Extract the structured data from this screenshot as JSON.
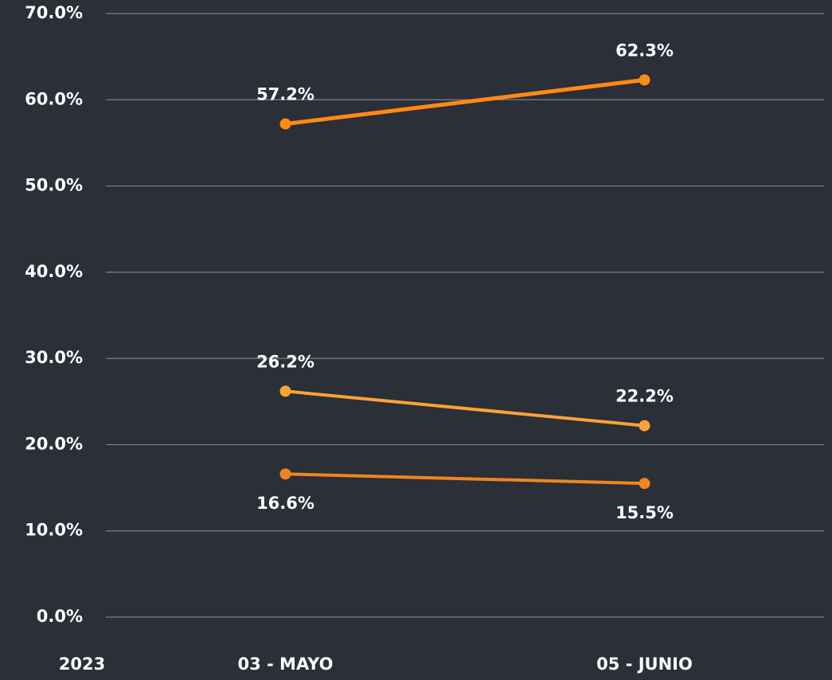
{
  "chart_data": {
    "type": "line",
    "x_label": "2023",
    "categories": [
      "03 - MAYO",
      "05 - JUNIO"
    ],
    "series": [
      {
        "color": "#ff8a14",
        "values": [
          57.2,
          62.3
        ],
        "value_labels": [
          "57.2%",
          "62.3%"
        ]
      },
      {
        "color": "#ffa236",
        "values": [
          26.2,
          22.2
        ],
        "value_labels": [
          "26.2%",
          "22.2%"
        ]
      },
      {
        "color": "#f08520",
        "values": [
          16.6,
          15.5
        ],
        "value_labels": [
          "16.6%",
          "15.5%"
        ]
      }
    ],
    "ylim": [
      0,
      70
    ],
    "yticks": [
      {
        "value": 0,
        "label": "0.0%"
      },
      {
        "value": 10,
        "label": "10.0%"
      },
      {
        "value": 20,
        "label": "20.0%"
      },
      {
        "value": 30,
        "label": "30.0%"
      },
      {
        "value": 40,
        "label": "40.0%"
      },
      {
        "value": 50,
        "label": "50.0%"
      },
      {
        "value": 60,
        "label": "60.0%"
      },
      {
        "value": 70,
        "label": "70.0%"
      }
    ],
    "grid": true
  }
}
